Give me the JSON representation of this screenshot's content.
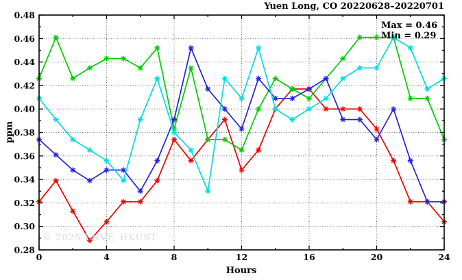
{
  "chart_data": {
    "type": "line",
    "title": "Yuen Long, CO 20220628–20220701",
    "xlabel": "Hours",
    "ylabel": "ppm",
    "xlim": [
      0,
      24
    ],
    "ylim": [
      0.28,
      0.48
    ],
    "x_major_ticks": [
      0,
      4,
      8,
      12,
      16,
      20,
      24
    ],
    "x_minor_step": 2,
    "y_major_step": 0.02,
    "y_minor_step": 0.01,
    "grid": {
      "vertical_at": [
        4,
        8,
        12,
        16,
        20
      ],
      "horizontal_step": 0.02,
      "style": "dotted"
    },
    "legend_position": "none",
    "annotations": {
      "max": "Max = 0.46",
      "min": "Min = 0.29"
    },
    "watermark": "© 2025 ENVF, HKUST",
    "x": [
      0,
      1,
      2,
      3,
      4,
      5,
      6,
      7,
      8,
      9,
      10,
      11,
      12,
      13,
      14,
      15,
      16,
      17,
      18,
      19,
      20,
      21,
      22,
      23,
      24
    ],
    "series": [
      {
        "name": "red",
        "color": "#f00000",
        "values": [
          0.321,
          0.339,
          0.313,
          0.288,
          0.304,
          0.321,
          0.321,
          0.339,
          0.374,
          0.356,
          0.374,
          0.391,
          0.348,
          0.365,
          0.4,
          0.417,
          0.417,
          0.4,
          0.4,
          0.4,
          0.383,
          0.356,
          0.321,
          0.321,
          0.304
        ]
      },
      {
        "name": "green",
        "color": "#00cc00",
        "values": [
          0.426,
          0.461,
          0.426,
          0.435,
          0.443,
          0.443,
          0.435,
          0.452,
          0.383,
          0.435,
          0.374,
          0.374,
          0.365,
          0.4,
          0.426,
          0.417,
          0.409,
          0.426,
          0.443,
          0.461,
          0.461,
          0.461,
          0.409,
          0.409,
          0.374
        ]
      },
      {
        "name": "blue",
        "color": "#2424d8",
        "values": [
          0.374,
          0.361,
          0.348,
          0.339,
          0.348,
          0.348,
          0.33,
          0.356,
          0.391,
          0.452,
          0.417,
          0.4,
          0.383,
          0.426,
          0.409,
          0.409,
          0.417,
          0.426,
          0.391,
          0.391,
          0.374,
          0.4,
          0.356,
          0.321,
          0.321
        ]
      },
      {
        "name": "cyan",
        "color": "#00dede",
        "values": [
          0.409,
          0.391,
          0.374,
          0.365,
          0.356,
          0.339,
          0.391,
          0.426,
          0.38,
          0.365,
          0.33,
          0.426,
          0.409,
          0.452,
          0.4,
          0.391,
          0.4,
          0.409,
          0.426,
          0.435,
          0.435,
          0.461,
          0.452,
          0.417,
          0.426
        ]
      }
    ]
  }
}
